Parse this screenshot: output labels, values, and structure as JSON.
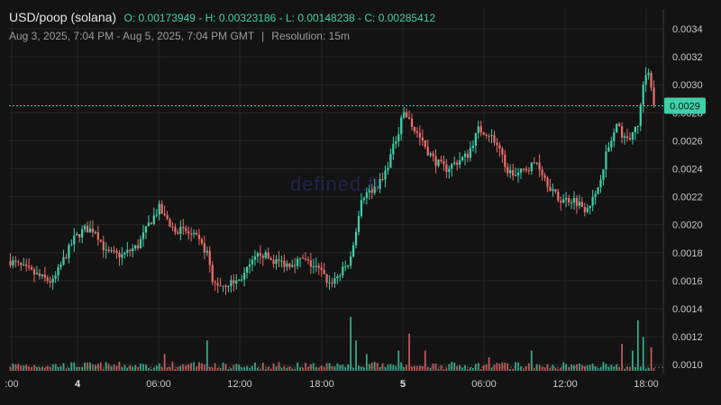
{
  "header": {
    "pair": "USD/poop (solana)",
    "ohlc": "O: 0.00173949 - H: 0.00323186 - L: 0.00148238 - C: 0.00285412",
    "range": "Aug 3, 2025, 7:04 PM - Aug 5, 2025, 7:04 PM GMT",
    "separator": "|",
    "resolution": "Resolution: 15m"
  },
  "watermark": "defined.fi",
  "colors": {
    "up": "#3fcfa9",
    "down": "#ef6b6b",
    "background": "#131313",
    "grid": "#262626",
    "price_tag": "#3fcfa9"
  },
  "chart_data": {
    "type": "candlestick",
    "title": "USD/poop (solana)",
    "interval": "15m",
    "x_ticks": [
      ":00",
      "4",
      "06:00",
      "12:00",
      "18:00",
      "5",
      "06:00",
      "12:00",
      "18:00"
    ],
    "y_ticks": [
      "0.0034",
      "0.0032",
      "0.0030",
      "0.0028",
      "0.0026",
      "0.0024",
      "0.0022",
      "0.0020",
      "0.0018",
      "0.0016",
      "0.0014",
      "0.0012",
      "0.0010"
    ],
    "ylim": [
      0.00095,
      0.00357
    ],
    "last_price": "0.0029",
    "last_price_value": 0.00285,
    "open": 0.00173949,
    "high": 0.00323186,
    "low": 0.00148238,
    "close": 0.00285412,
    "price_path_keypoints": [
      [
        0,
        0.00174
      ],
      [
        6,
        0.00168
      ],
      [
        12,
        0.00162
      ],
      [
        16,
        0.00159
      ],
      [
        20,
        0.00175
      ],
      [
        24,
        0.0019
      ],
      [
        28,
        0.00197
      ],
      [
        32,
        0.00196
      ],
      [
        36,
        0.0018
      ],
      [
        42,
        0.00178
      ],
      [
        48,
        0.00185
      ],
      [
        52,
        0.002
      ],
      [
        56,
        0.00212
      ],
      [
        60,
        0.00198
      ],
      [
        66,
        0.00195
      ],
      [
        70,
        0.0019
      ],
      [
        74,
        0.0018
      ],
      [
        76,
        0.00158
      ],
      [
        80,
        0.00157
      ],
      [
        86,
        0.0016
      ],
      [
        90,
        0.0017
      ],
      [
        94,
        0.0018
      ],
      [
        98,
        0.00175
      ],
      [
        104,
        0.00172
      ],
      [
        110,
        0.00175
      ],
      [
        116,
        0.00168
      ],
      [
        120,
        0.00158
      ],
      [
        124,
        0.00165
      ],
      [
        128,
        0.00175
      ],
      [
        132,
        0.0022
      ],
      [
        136,
        0.00225
      ],
      [
        140,
        0.00232
      ],
      [
        144,
        0.00255
      ],
      [
        148,
        0.0028
      ],
      [
        152,
        0.00268
      ],
      [
        156,
        0.00255
      ],
      [
        160,
        0.00245
      ],
      [
        164,
        0.0024
      ],
      [
        168,
        0.00245
      ],
      [
        172,
        0.0025
      ],
      [
        176,
        0.00268
      ],
      [
        180,
        0.00265
      ],
      [
        184,
        0.00255
      ],
      [
        186,
        0.0024
      ],
      [
        190,
        0.00235
      ],
      [
        194,
        0.0024
      ],
      [
        198,
        0.00245
      ],
      [
        202,
        0.0023
      ],
      [
        206,
        0.00218
      ],
      [
        212,
        0.00218
      ],
      [
        216,
        0.00212
      ],
      [
        220,
        0.0022
      ],
      [
        224,
        0.0025
      ],
      [
        228,
        0.0027
      ],
      [
        232,
        0.0026
      ],
      [
        236,
        0.0027
      ],
      [
        238,
        0.003
      ],
      [
        240,
        0.0031
      ],
      [
        242,
        0.00285
      ]
    ],
    "volume_spikes": [
      [
        128,
        0.8
      ],
      [
        130,
        0.45
      ],
      [
        134,
        0.25
      ],
      [
        146,
        0.3
      ],
      [
        150,
        0.55
      ],
      [
        156,
        0.3
      ],
      [
        180,
        0.2
      ],
      [
        74,
        0.45
      ],
      [
        58,
        0.25
      ],
      [
        196,
        0.3
      ],
      [
        230,
        0.4
      ],
      [
        234,
        0.3
      ],
      [
        236,
        0.75
      ],
      [
        238,
        0.5
      ],
      [
        241,
        0.35
      ],
      [
        244,
        0.25
      ]
    ]
  }
}
